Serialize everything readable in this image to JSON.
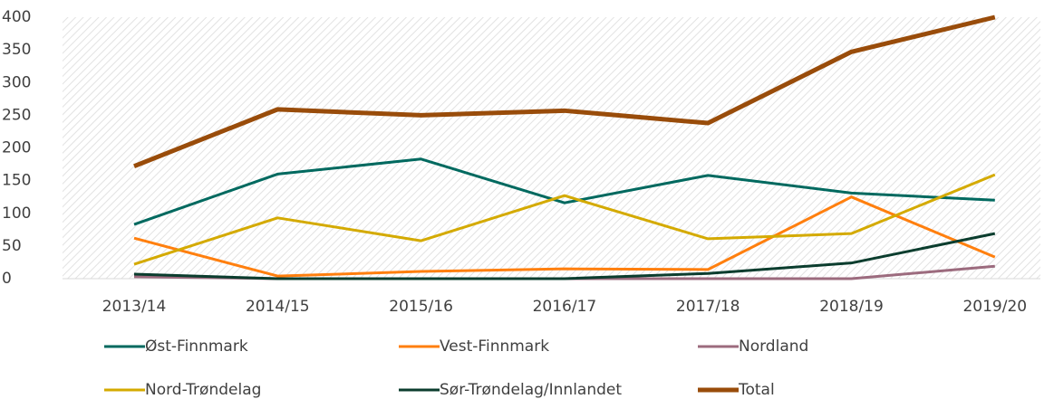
{
  "chart_data": {
    "type": "line",
    "categories": [
      "2013/14",
      "2014/15",
      "2015/16",
      "2016/17",
      "2017/18",
      "2018/19",
      "2019/20"
    ],
    "series": [
      {
        "name": "Øst-Finnmark",
        "color": "#00695f",
        "values": [
          83,
          160,
          183,
          116,
          158,
          131,
          120
        ]
      },
      {
        "name": "Vest-Finnmark",
        "color": "#ff7f0e",
        "values": [
          62,
          4,
          11,
          15,
          14,
          125,
          33
        ]
      },
      {
        "name": "Nordland",
        "color": "#9c6b7e",
        "values": [
          3,
          0,
          0,
          0,
          0,
          0,
          19
        ]
      },
      {
        "name": "Nord-Trøndelag",
        "color": "#d4aa00",
        "values": [
          22,
          93,
          58,
          127,
          61,
          69,
          159
        ]
      },
      {
        "name": "Sør-Trøndelag/Innlandet",
        "color": "#0b3d2e",
        "values": [
          7,
          0,
          0,
          0,
          8,
          24,
          69
        ]
      },
      {
        "name": "Total",
        "color": "#994c0a",
        "values": [
          172,
          259,
          250,
          257,
          238,
          347,
          400
        ]
      }
    ],
    "ylim": [
      0,
      400
    ],
    "yticks": [
      0,
      50,
      100,
      150,
      200,
      250,
      300,
      350,
      400
    ],
    "grid": false
  }
}
